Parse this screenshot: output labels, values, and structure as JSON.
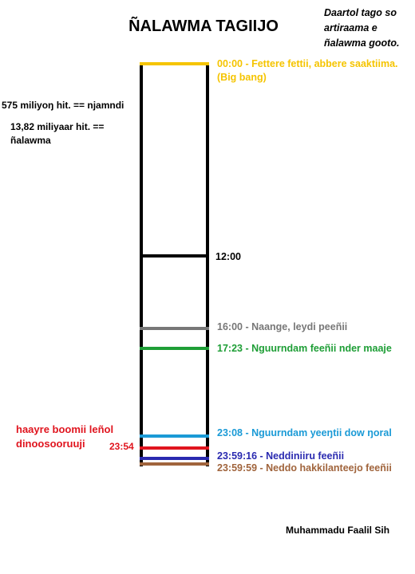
{
  "title": "ÑALAWMA TAGIIJO",
  "top_note": "Daartol tago so artiraama e ñalawma gooto.",
  "scale_notes": [
    "575 miliyoŋ hit. == njamndi",
    "13,82 miliyaar hit. == ñalawma"
  ],
  "events": [
    {
      "time": "00:00",
      "text": "Fettere fettii, abbere saaktiima. (Big bang)",
      "color": "#f5c400"
    },
    {
      "time": "12:00",
      "text": "",
      "color": "#000000"
    },
    {
      "time": "16:00",
      "text": "Naange, leydi peeñii",
      "color": "#777777"
    },
    {
      "time": "17:23",
      "text": "Nguurndam feeñii nder maaje",
      "color": "#1e9e36"
    },
    {
      "time": "23:08",
      "text": "Nguurndam yeeŋtii dow ŋoral",
      "color": "#1a9ad6"
    },
    {
      "time": "23:54",
      "text": "haayre boomii leñol dinoosooruuji",
      "color": "#e0141e"
    },
    {
      "time": "23:59:16",
      "text": "Neddiniiru feeñii",
      "color": "#2a2ab0"
    },
    {
      "time": "23:59:59",
      "text": "Neddo hakkilanteejo feeñii",
      "color": "#a0643c"
    }
  ],
  "author": "Muhammadu Faalil Sih"
}
